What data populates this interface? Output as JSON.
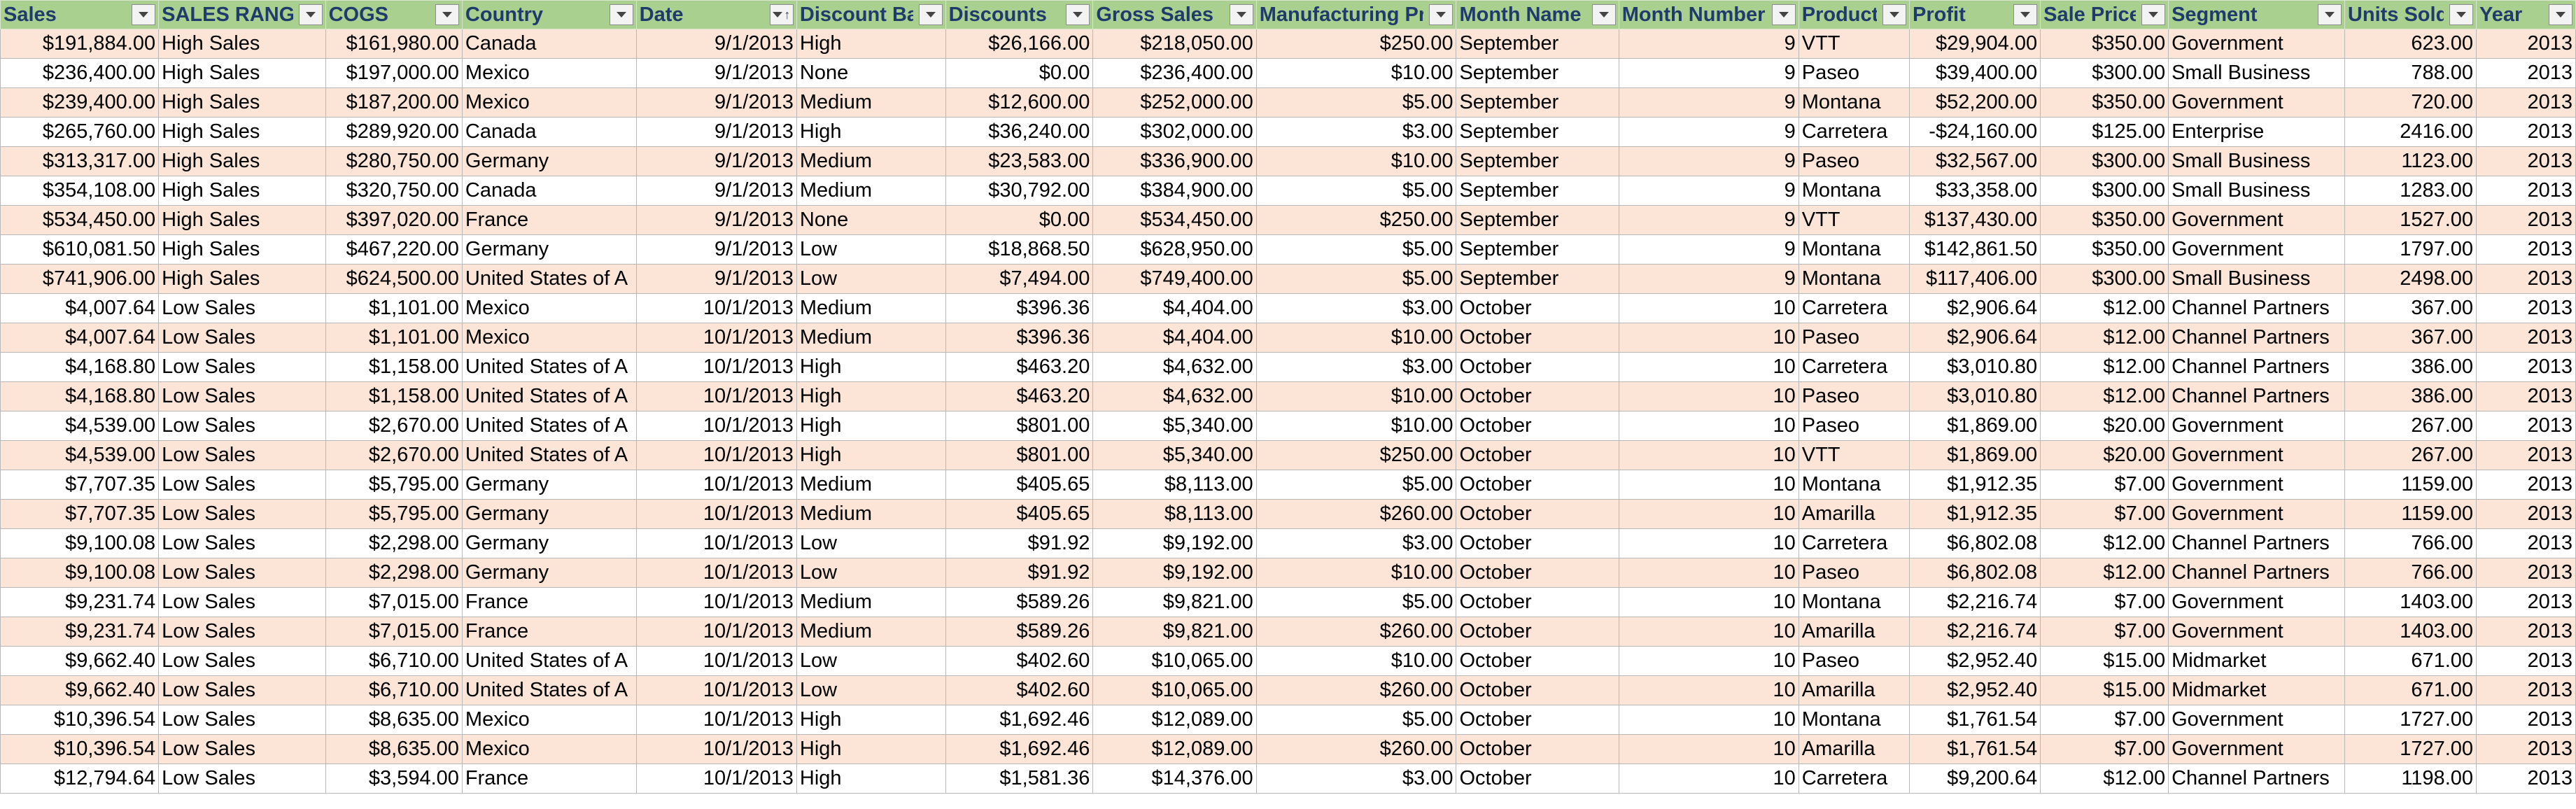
{
  "headers": [
    "Sales",
    "SALES RANGE",
    "COGS",
    "Country",
    "Date",
    "Discount Band",
    "Discounts",
    "Gross Sales",
    "Manufacturing Price",
    "Month Name",
    "Month Number",
    "Product",
    "Profit",
    "Sale Price",
    "Segment",
    "Units Sold",
    "Year"
  ],
  "sort_column": "Date",
  "colors": {
    "header_bg": "#a9d08e",
    "header_text": "#1f3b6b",
    "band_row": "#fce4d6"
  },
  "rows": [
    [
      "$191,884.00",
      "High Sales",
      "$161,980.00",
      "Canada",
      "9/1/2013",
      "High",
      "$26,166.00",
      "$218,050.00",
      "$250.00",
      "September",
      "9",
      "VTT",
      "$29,904.00",
      "$350.00",
      "Government",
      "623.00",
      "2013"
    ],
    [
      "$236,400.00",
      "High Sales",
      "$197,000.00",
      "Mexico",
      "9/1/2013",
      "None",
      "$0.00",
      "$236,400.00",
      "$10.00",
      "September",
      "9",
      "Paseo",
      "$39,400.00",
      "$300.00",
      "Small Business",
      "788.00",
      "2013"
    ],
    [
      "$239,400.00",
      "High Sales",
      "$187,200.00",
      "Mexico",
      "9/1/2013",
      "Medium",
      "$12,600.00",
      "$252,000.00",
      "$5.00",
      "September",
      "9",
      "Montana",
      "$52,200.00",
      "$350.00",
      "Government",
      "720.00",
      "2013"
    ],
    [
      "$265,760.00",
      "High Sales",
      "$289,920.00",
      "Canada",
      "9/1/2013",
      "High",
      "$36,240.00",
      "$302,000.00",
      "$3.00",
      "September",
      "9",
      "Carretera",
      "-$24,160.00",
      "$125.00",
      "Enterprise",
      "2416.00",
      "2013"
    ],
    [
      "$313,317.00",
      "High Sales",
      "$280,750.00",
      "Germany",
      "9/1/2013",
      "Medium",
      "$23,583.00",
      "$336,900.00",
      "$10.00",
      "September",
      "9",
      "Paseo",
      "$32,567.00",
      "$300.00",
      "Small Business",
      "1123.00",
      "2013"
    ],
    [
      "$354,108.00",
      "High Sales",
      "$320,750.00",
      "Canada",
      "9/1/2013",
      "Medium",
      "$30,792.00",
      "$384,900.00",
      "$5.00",
      "September",
      "9",
      "Montana",
      "$33,358.00",
      "$300.00",
      "Small Business",
      "1283.00",
      "2013"
    ],
    [
      "$534,450.00",
      "High Sales",
      "$397,020.00",
      "France",
      "9/1/2013",
      "None",
      "$0.00",
      "$534,450.00",
      "$250.00",
      "September",
      "9",
      "VTT",
      "$137,430.00",
      "$350.00",
      "Government",
      "1527.00",
      "2013"
    ],
    [
      "$610,081.50",
      "High Sales",
      "$467,220.00",
      "Germany",
      "9/1/2013",
      "Low",
      "$18,868.50",
      "$628,950.00",
      "$5.00",
      "September",
      "9",
      "Montana",
      "$142,861.50",
      "$350.00",
      "Government",
      "1797.00",
      "2013"
    ],
    [
      "$741,906.00",
      "High Sales",
      "$624,500.00",
      "United States of A",
      "9/1/2013",
      "Low",
      "$7,494.00",
      "$749,400.00",
      "$5.00",
      "September",
      "9",
      "Montana",
      "$117,406.00",
      "$300.00",
      "Small Business",
      "2498.00",
      "2013"
    ],
    [
      "$4,007.64",
      "Low Sales",
      "$1,101.00",
      "Mexico",
      "10/1/2013",
      "Medium",
      "$396.36",
      "$4,404.00",
      "$3.00",
      "October",
      "10",
      "Carretera",
      "$2,906.64",
      "$12.00",
      "Channel Partners",
      "367.00",
      "2013"
    ],
    [
      "$4,007.64",
      "Low Sales",
      "$1,101.00",
      "Mexico",
      "10/1/2013",
      "Medium",
      "$396.36",
      "$4,404.00",
      "$10.00",
      "October",
      "10",
      "Paseo",
      "$2,906.64",
      "$12.00",
      "Channel Partners",
      "367.00",
      "2013"
    ],
    [
      "$4,168.80",
      "Low Sales",
      "$1,158.00",
      "United States of A",
      "10/1/2013",
      "High",
      "$463.20",
      "$4,632.00",
      "$3.00",
      "October",
      "10",
      "Carretera",
      "$3,010.80",
      "$12.00",
      "Channel Partners",
      "386.00",
      "2013"
    ],
    [
      "$4,168.80",
      "Low Sales",
      "$1,158.00",
      "United States of A",
      "10/1/2013",
      "High",
      "$463.20",
      "$4,632.00",
      "$10.00",
      "October",
      "10",
      "Paseo",
      "$3,010.80",
      "$12.00",
      "Channel Partners",
      "386.00",
      "2013"
    ],
    [
      "$4,539.00",
      "Low Sales",
      "$2,670.00",
      "United States of A",
      "10/1/2013",
      "High",
      "$801.00",
      "$5,340.00",
      "$10.00",
      "October",
      "10",
      "Paseo",
      "$1,869.00",
      "$20.00",
      "Government",
      "267.00",
      "2013"
    ],
    [
      "$4,539.00",
      "Low Sales",
      "$2,670.00",
      "United States of A",
      "10/1/2013",
      "High",
      "$801.00",
      "$5,340.00",
      "$250.00",
      "October",
      "10",
      "VTT",
      "$1,869.00",
      "$20.00",
      "Government",
      "267.00",
      "2013"
    ],
    [
      "$7,707.35",
      "Low Sales",
      "$5,795.00",
      "Germany",
      "10/1/2013",
      "Medium",
      "$405.65",
      "$8,113.00",
      "$5.00",
      "October",
      "10",
      "Montana",
      "$1,912.35",
      "$7.00",
      "Government",
      "1159.00",
      "2013"
    ],
    [
      "$7,707.35",
      "Low Sales",
      "$5,795.00",
      "Germany",
      "10/1/2013",
      "Medium",
      "$405.65",
      "$8,113.00",
      "$260.00",
      "October",
      "10",
      "Amarilla",
      "$1,912.35",
      "$7.00",
      "Government",
      "1159.00",
      "2013"
    ],
    [
      "$9,100.08",
      "Low Sales",
      "$2,298.00",
      "Germany",
      "10/1/2013",
      "Low",
      "$91.92",
      "$9,192.00",
      "$3.00",
      "October",
      "10",
      "Carretera",
      "$6,802.08",
      "$12.00",
      "Channel Partners",
      "766.00",
      "2013"
    ],
    [
      "$9,100.08",
      "Low Sales",
      "$2,298.00",
      "Germany",
      "10/1/2013",
      "Low",
      "$91.92",
      "$9,192.00",
      "$10.00",
      "October",
      "10",
      "Paseo",
      "$6,802.08",
      "$12.00",
      "Channel Partners",
      "766.00",
      "2013"
    ],
    [
      "$9,231.74",
      "Low Sales",
      "$7,015.00",
      "France",
      "10/1/2013",
      "Medium",
      "$589.26",
      "$9,821.00",
      "$5.00",
      "October",
      "10",
      "Montana",
      "$2,216.74",
      "$7.00",
      "Government",
      "1403.00",
      "2013"
    ],
    [
      "$9,231.74",
      "Low Sales",
      "$7,015.00",
      "France",
      "10/1/2013",
      "Medium",
      "$589.26",
      "$9,821.00",
      "$260.00",
      "October",
      "10",
      "Amarilla",
      "$2,216.74",
      "$7.00",
      "Government",
      "1403.00",
      "2013"
    ],
    [
      "$9,662.40",
      "Low Sales",
      "$6,710.00",
      "United States of A",
      "10/1/2013",
      "Low",
      "$402.60",
      "$10,065.00",
      "$10.00",
      "October",
      "10",
      "Paseo",
      "$2,952.40",
      "$15.00",
      "Midmarket",
      "671.00",
      "2013"
    ],
    [
      "$9,662.40",
      "Low Sales",
      "$6,710.00",
      "United States of A",
      "10/1/2013",
      "Low",
      "$402.60",
      "$10,065.00",
      "$260.00",
      "October",
      "10",
      "Amarilla",
      "$2,952.40",
      "$15.00",
      "Midmarket",
      "671.00",
      "2013"
    ],
    [
      "$10,396.54",
      "Low Sales",
      "$8,635.00",
      "Mexico",
      "10/1/2013",
      "High",
      "$1,692.46",
      "$12,089.00",
      "$5.00",
      "October",
      "10",
      "Montana",
      "$1,761.54",
      "$7.00",
      "Government",
      "1727.00",
      "2013"
    ],
    [
      "$10,396.54",
      "Low Sales",
      "$8,635.00",
      "Mexico",
      "10/1/2013",
      "High",
      "$1,692.46",
      "$12,089.00",
      "$260.00",
      "October",
      "10",
      "Amarilla",
      "$1,761.54",
      "$7.00",
      "Government",
      "1727.00",
      "2013"
    ],
    [
      "$12,794.64",
      "Low Sales",
      "$3,594.00",
      "France",
      "10/1/2013",
      "High",
      "$1,581.36",
      "$14,376.00",
      "$3.00",
      "October",
      "10",
      "Carretera",
      "$9,200.64",
      "$12.00",
      "Channel Partners",
      "1198.00",
      "2013"
    ]
  ]
}
